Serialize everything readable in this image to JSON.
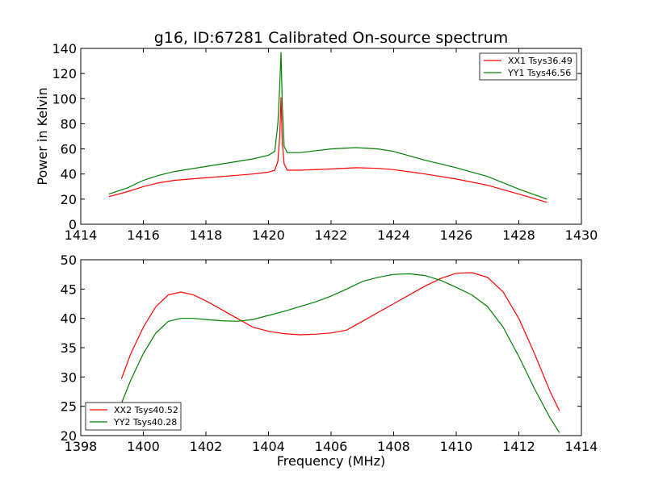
{
  "chart_data": [
    {
      "type": "line",
      "title": "g16, ID:67281 Calibrated On-source spectrum",
      "xlabel": "",
      "ylabel": "Power in Kelvin",
      "xlim": [
        1414,
        1430
      ],
      "ylim": [
        0,
        140
      ],
      "xticks": [
        "1414",
        "1416",
        "1418",
        "1420",
        "1422",
        "1424",
        "1426",
        "1428",
        "1430"
      ],
      "yticks": [
        "0",
        "20",
        "40",
        "60",
        "80",
        "100",
        "120",
        "140"
      ],
      "grid": false,
      "legend_position": "top-right",
      "series": [
        {
          "name": "XX1 Tsys36.49",
          "color": "#ff0000",
          "x": [
            1414.9,
            1415.5,
            1416.0,
            1416.5,
            1417.0,
            1418.0,
            1419.0,
            1419.5,
            1420.0,
            1420.2,
            1420.3,
            1420.36,
            1420.4,
            1420.44,
            1420.5,
            1420.6,
            1421.0,
            1422.0,
            1422.8,
            1423.5,
            1424.0,
            1425.0,
            1426.0,
            1427.0,
            1428.0,
            1428.9
          ],
          "y": [
            22,
            26,
            30,
            33,
            35,
            37,
            39,
            40,
            41.5,
            43,
            50,
            70,
            101,
            65,
            48,
            43,
            43,
            44,
            45,
            44.5,
            43.5,
            40,
            36,
            31,
            24,
            17.5
          ]
        },
        {
          "name": "YY1 Tsys46.56",
          "color": "#008000",
          "x": [
            1414.9,
            1415.5,
            1416.0,
            1416.5,
            1417.0,
            1418.0,
            1419.0,
            1419.5,
            1420.0,
            1420.2,
            1420.3,
            1420.36,
            1420.4,
            1420.44,
            1420.5,
            1420.6,
            1421.0,
            1422.0,
            1422.8,
            1423.5,
            1424.0,
            1425.0,
            1426.0,
            1427.0,
            1428.0,
            1428.9
          ],
          "y": [
            24,
            29,
            35,
            39,
            42,
            46,
            50,
            52,
            55,
            58,
            80,
            110,
            137,
            95,
            62,
            57,
            57,
            60,
            61,
            60,
            58,
            51,
            45,
            38,
            28,
            20
          ]
        }
      ]
    },
    {
      "type": "line",
      "title": "",
      "xlabel": "Frequency (MHz)",
      "ylabel": "",
      "xlim": [
        1398,
        1414
      ],
      "ylim": [
        20,
        50
      ],
      "xticks": [
        "1398",
        "1400",
        "1402",
        "1404",
        "1406",
        "1408",
        "1410",
        "1412",
        "1414"
      ],
      "yticks": [
        "20",
        "25",
        "30",
        "35",
        "40",
        "45",
        "50"
      ],
      "grid": false,
      "legend_position": "lower-left",
      "series": [
        {
          "name": "XX2 Tsys40.52",
          "color": "#ff0000",
          "x": [
            1399.3,
            1399.6,
            1400.0,
            1400.4,
            1400.8,
            1401.2,
            1401.6,
            1402.0,
            1402.5,
            1403.0,
            1403.5,
            1404.0,
            1404.5,
            1405.0,
            1405.5,
            1406.0,
            1406.5,
            1407.0,
            1407.5,
            1408.0,
            1408.5,
            1409.0,
            1409.5,
            1410.0,
            1410.5,
            1411.0,
            1411.5,
            1412.0,
            1412.5,
            1413.0,
            1413.3
          ],
          "y": [
            29.7,
            34,
            38.5,
            42,
            44,
            44.5,
            44,
            43,
            41.5,
            40,
            38.5,
            37.8,
            37.4,
            37.2,
            37.3,
            37.5,
            38,
            39.5,
            41,
            42.5,
            44,
            45.5,
            46.8,
            47.7,
            47.8,
            47,
            44.5,
            40,
            34,
            27.5,
            24.2
          ]
        },
        {
          "name": "YY2 Tsys40.28",
          "color": "#008000",
          "x": [
            1399.3,
            1399.6,
            1400.0,
            1400.4,
            1400.8,
            1401.2,
            1401.6,
            1402.0,
            1402.5,
            1403.0,
            1403.5,
            1404.0,
            1404.5,
            1405.0,
            1405.5,
            1406.0,
            1406.5,
            1407.0,
            1407.5,
            1408.0,
            1408.5,
            1409.0,
            1409.5,
            1410.0,
            1410.5,
            1411.0,
            1411.5,
            1412.0,
            1412.5,
            1413.0,
            1413.3
          ],
          "y": [
            25.5,
            29.5,
            34,
            37.5,
            39.5,
            40,
            40,
            39.8,
            39.6,
            39.5,
            39.8,
            40.5,
            41.2,
            42,
            42.8,
            43.8,
            45,
            46.3,
            47,
            47.5,
            47.6,
            47.3,
            46.5,
            45.3,
            44,
            42,
            38.5,
            33.5,
            28,
            23,
            20.5
          ]
        }
      ]
    }
  ]
}
